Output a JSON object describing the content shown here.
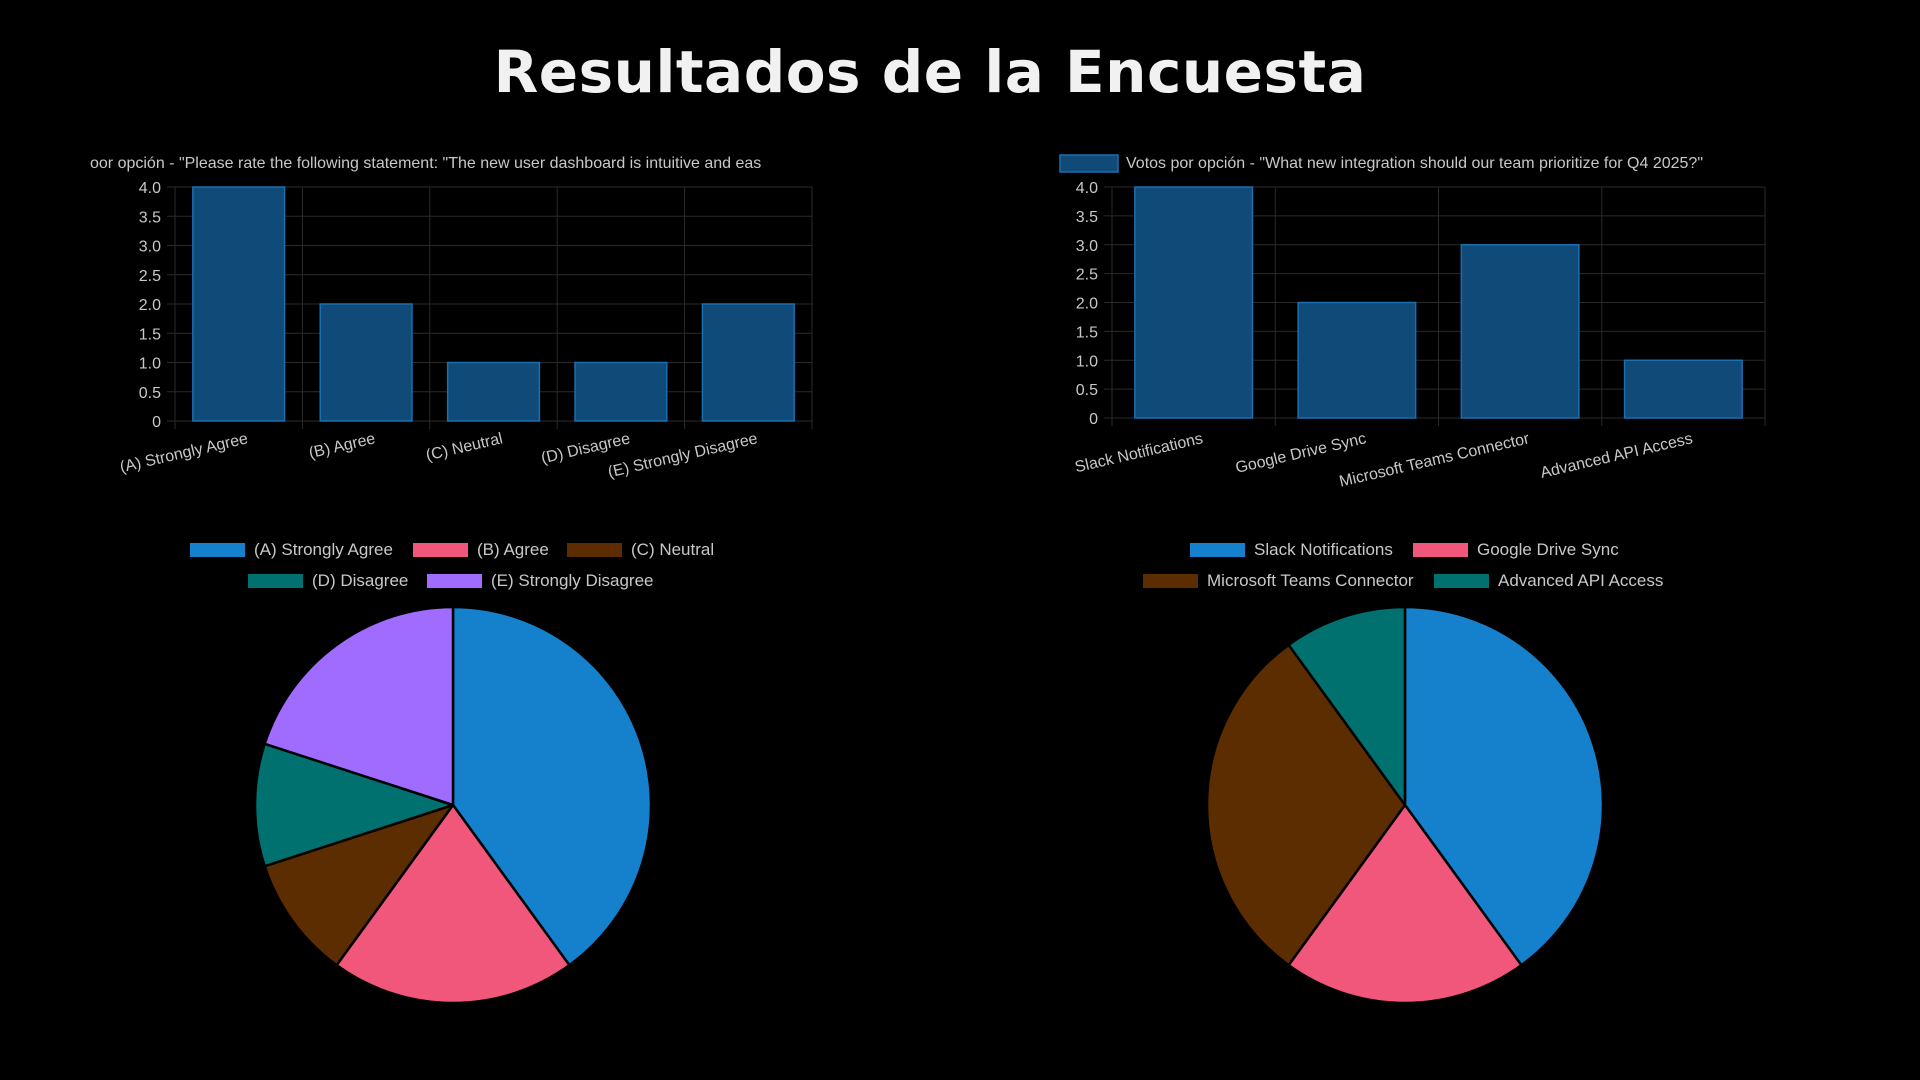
{
  "page": {
    "title": "Resultados de la Encuesta"
  },
  "chart_data": [
    {
      "type": "bar",
      "title": "Votos por opción - \"Please rate the following statement: \"The new user dashboard is intuitive and easy to use.\"\"",
      "title_visible": "oor opción - \"Please rate the following statement: \"The new user dashboard is intuitive and eas",
      "categories": [
        "(A) Strongly Agree",
        "(B) Agree",
        "(C) Neutral",
        "(D) Disagree",
        "(E) Strongly Disagree"
      ],
      "values": [
        4,
        2,
        1,
        1,
        2
      ],
      "ylim": [
        0,
        4
      ],
      "yticks": [
        "0",
        "0.5",
        "1.0",
        "1.5",
        "2.0",
        "2.5",
        "3.0",
        "3.5",
        "4.0"
      ],
      "grid": true,
      "bar_color": "#0f4a78",
      "bar_border": "#1a6fb0"
    },
    {
      "type": "bar",
      "title": "Votos por opción - \"What new integration should our team prioritize for Q4 2025?\"",
      "categories": [
        "Slack Notifications",
        "Google Drive Sync",
        "Microsoft Teams Connector",
        "Advanced API Access"
      ],
      "values": [
        4,
        2,
        3,
        1
      ],
      "ylim": [
        0,
        4
      ],
      "yticks": [
        "0",
        "0.5",
        "1.0",
        "1.5",
        "2.0",
        "2.5",
        "3.0",
        "3.5",
        "4.0"
      ],
      "grid": true,
      "legend": "top",
      "bar_color": "#0f4a78",
      "bar_border": "#1a6fb0"
    },
    {
      "type": "pie",
      "labels": [
        "(A) Strongly Agree",
        "(B) Agree",
        "(C) Neutral",
        "(D) Disagree",
        "(E) Strongly Disagree"
      ],
      "values": [
        4,
        2,
        1,
        1,
        2
      ],
      "colors": [
        "#1581cd",
        "#f0577a",
        "#5c2d00",
        "#00716e",
        "#a06cff"
      ],
      "legend": "top"
    },
    {
      "type": "pie",
      "labels": [
        "Slack Notifications",
        "Google Drive Sync",
        "Microsoft Teams Connector",
        "Advanced API Access"
      ],
      "values": [
        4,
        2,
        3,
        1
      ],
      "colors": [
        "#1581cd",
        "#f0577a",
        "#5c2d00",
        "#00716e"
      ],
      "legend": "top"
    }
  ]
}
